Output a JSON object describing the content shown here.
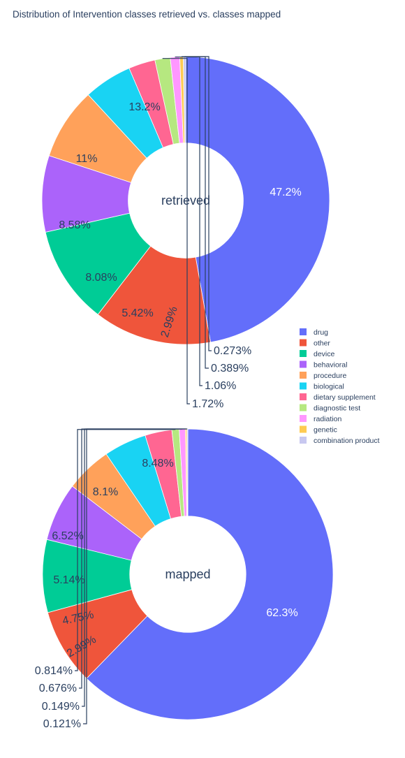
{
  "chart_data": {
    "type": "pie",
    "title": "Distribution of Intervention classes retrieved vs. classes mapped",
    "legend": {
      "placement": "right",
      "entries": [
        {
          "name": "drug",
          "color": "#636efa"
        },
        {
          "name": "other",
          "color": "#ef553b"
        },
        {
          "name": "device",
          "color": "#00cc96"
        },
        {
          "name": "behavioral",
          "color": "#ab63fa"
        },
        {
          "name": "procedure",
          "color": "#ffa15a"
        },
        {
          "name": "biological",
          "color": "#19d3f3"
        },
        {
          "name": "dietary supplement",
          "color": "#ff6692"
        },
        {
          "name": "diagnostic test",
          "color": "#b6e880"
        },
        {
          "name": "radiation",
          "color": "#ff97ff"
        },
        {
          "name": "genetic",
          "color": "#fecb52"
        },
        {
          "name": "combination product",
          "color": "#c8c8f0"
        }
      ]
    },
    "pies": [
      {
        "name": "retrieved",
        "hole": 0.4,
        "slices": [
          {
            "label": "drug",
            "value": 47.2,
            "text": "47.2%"
          },
          {
            "label": "other",
            "value": 13.2,
            "text": "13.2%"
          },
          {
            "label": "device",
            "value": 11,
            "text": "11%"
          },
          {
            "label": "behavioral",
            "value": 8.58,
            "text": "8.58%"
          },
          {
            "label": "procedure",
            "value": 8.08,
            "text": "8.08%"
          },
          {
            "label": "biological",
            "value": 5.42,
            "text": "5.42%"
          },
          {
            "label": "dietary supplement",
            "value": 2.99,
            "text": "2.99%"
          },
          {
            "label": "diagnostic test",
            "value": 1.72,
            "text": "1.72%"
          },
          {
            "label": "radiation",
            "value": 1.06,
            "text": "1.06%"
          },
          {
            "label": "genetic",
            "value": 0.389,
            "text": "0.389%"
          },
          {
            "label": "combination product",
            "value": 0.273,
            "text": "0.273%"
          }
        ]
      },
      {
        "name": "mapped",
        "hole": 0.4,
        "slices": [
          {
            "label": "drug",
            "value": 62.3,
            "text": "62.3%"
          },
          {
            "label": "other",
            "value": 8.48,
            "text": "8.48%"
          },
          {
            "label": "device",
            "value": 8.1,
            "text": "8.1%"
          },
          {
            "label": "behavioral",
            "value": 6.52,
            "text": "6.52%"
          },
          {
            "label": "procedure",
            "value": 5.14,
            "text": "5.14%"
          },
          {
            "label": "biological",
            "value": 4.75,
            "text": "4.75%"
          },
          {
            "label": "dietary supplement",
            "value": 2.99,
            "text": "2.99%"
          },
          {
            "label": "diagnostic test",
            "value": 0.814,
            "text": "0.814%"
          },
          {
            "label": "radiation",
            "value": 0.676,
            "text": "0.676%"
          },
          {
            "label": "genetic",
            "value": 0.149,
            "text": "0.149%"
          },
          {
            "label": "combination product",
            "value": 0.121,
            "text": "0.121%"
          }
        ]
      }
    ]
  }
}
